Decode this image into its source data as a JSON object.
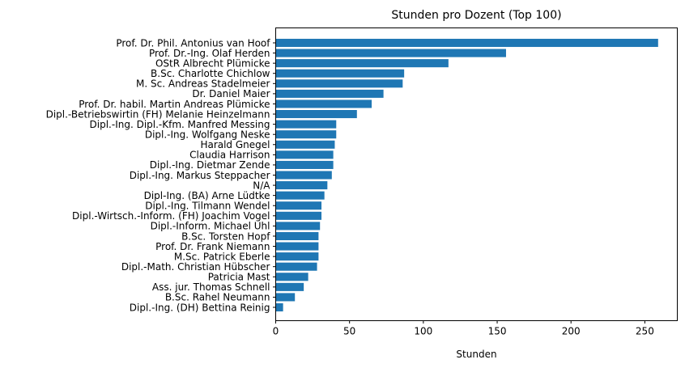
{
  "chart_data": {
    "type": "bar",
    "orientation": "horizontal",
    "title": "Stunden pro Dozent (Top 100)",
    "xlabel": "Stunden",
    "ylabel": "",
    "xlim": [
      0,
      272
    ],
    "xticks": [
      0,
      50,
      100,
      150,
      200,
      250
    ],
    "grid": false,
    "bar_color": "#1f77b4",
    "categories": [
      "Prof. Dr. Phil. Antonius van Hoof",
      "Prof. Dr.-Ing. Olaf Herden",
      "OStR Albrecht Plümicke",
      "B.Sc. Charlotte Chichlow",
      "M. Sc. Andreas Stadelmeier",
      "Dr. Daniel Maier",
      "Prof. Dr. habil. Martin Andreas Plümicke",
      "Dipl.-Betriebswirtin (FH) Melanie Heinzelmann",
      "Dipl.-Ing. Dipl.-Kfm. Manfred Messing",
      "Dipl.-Ing. Wolfgang Neske",
      "Harald Gnegel",
      "Claudia Harrison",
      "Dipl.-Ing. Dietmar Zende",
      "Dipl.-Ing. Markus Steppacher",
      "N/A",
      "Dipl-Ing. (BA) Arne Lüdtke",
      "Dipl.-Ing. Tilmann Wendel",
      "Dipl.-Wirtsch.-Inform. (FH) Joachim Vogel",
      "Dipl.-Inform. Michael Uhl",
      "B.Sc. Torsten Hopf",
      "Prof. Dr. Frank Niemann",
      "M.Sc. Patrick Eberle",
      "Dipl.-Math. Christian Hübscher",
      "Patricia Mast",
      "Ass. jur. Thomas Schnell",
      "B.Sc. Rahel Neumann",
      "Dipl.-Ing. (DH) Bettina Reinig"
    ],
    "values": [
      259,
      156,
      117,
      87,
      86,
      73,
      65,
      55,
      41,
      41,
      40,
      39,
      39,
      38,
      35,
      33,
      31,
      31,
      30,
      29,
      29,
      29,
      28,
      22,
      19,
      13,
      5
    ]
  }
}
